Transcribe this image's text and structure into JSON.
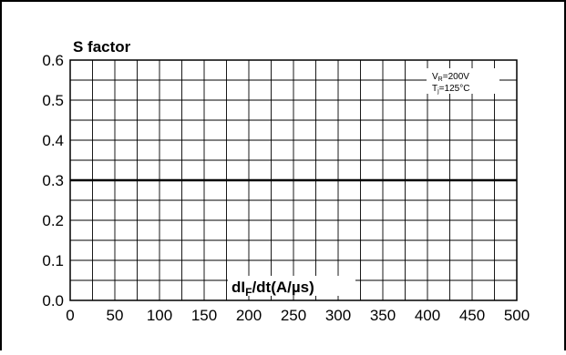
{
  "chart_data": {
    "type": "line",
    "title": "",
    "ylabel": "S factor",
    "xlabel": {
      "main": "dI",
      "sub": "F",
      "rest": "/dt(A/µs)"
    },
    "xlim": [
      0,
      500
    ],
    "ylim": [
      0.0,
      0.6
    ],
    "x_ticks": [
      0,
      50,
      100,
      150,
      200,
      250,
      300,
      350,
      400,
      450,
      500
    ],
    "x_tick_labels": [
      "0",
      "50",
      "100",
      "150",
      "200",
      "250",
      "300",
      "350",
      "400",
      "450",
      "500"
    ],
    "y_ticks": [
      0.0,
      0.1,
      0.2,
      0.3,
      0.4,
      0.5,
      0.6
    ],
    "y_tick_labels": [
      "0.0",
      "0.1",
      "0.2",
      "0.3",
      "0.4",
      "0.5",
      "0.6"
    ],
    "x_minor_step": 25,
    "y_minor_step": 0.05,
    "grid": true,
    "series": [
      {
        "x": [
          0,
          500
        ],
        "y": [
          0.3,
          0.3
        ]
      }
    ],
    "conditions": {
      "line1": {
        "main": "V",
        "sub": "R",
        "rest": "=200V"
      },
      "line2": {
        "main": "T",
        "sub": "j",
        "rest": "=125°C"
      }
    }
  }
}
